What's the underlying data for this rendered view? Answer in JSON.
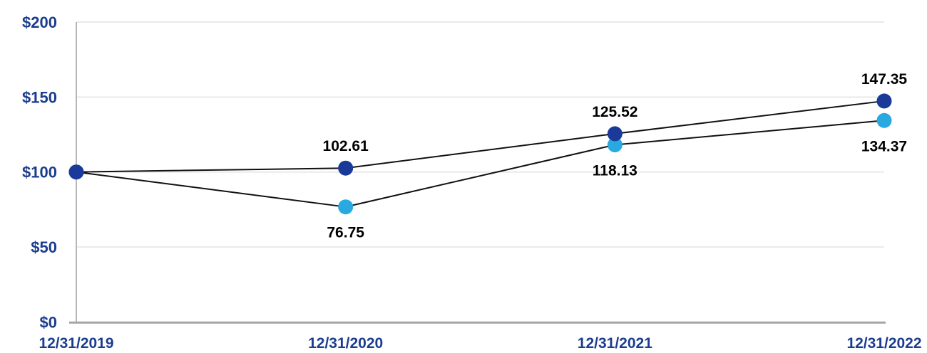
{
  "chart_data": {
    "type": "line",
    "title": "",
    "categories": [
      "12/31/2019",
      "12/31/2020",
      "12/31/2021",
      "12/31/2022"
    ],
    "series": [
      {
        "name": "navy-series",
        "color": "#1A3A99",
        "values": [
          100,
          102.61,
          125.52,
          147.35
        ],
        "point_labels": [
          "",
          "102.61",
          "125.52",
          "147.35"
        ],
        "label_position": "above"
      },
      {
        "name": "light-blue-series",
        "color": "#29A9E0",
        "values": [
          100,
          76.75,
          118.13,
          134.37
        ],
        "point_labels": [
          "",
          "76.75",
          "118.13",
          "134.37"
        ],
        "label_position": "below"
      }
    ],
    "y_axis": {
      "range": [
        0,
        200
      ],
      "ticks": [
        0,
        50,
        100,
        150,
        200
      ],
      "tick_labels": [
        "$0",
        "$50",
        "$100",
        "$150",
        "$200"
      ]
    },
    "x_axis": {
      "tick_labels": [
        "12/31/2019",
        "12/31/2020",
        "12/31/2021",
        "12/31/2022"
      ]
    },
    "grid": "horizontal",
    "legend": "none",
    "line_color": "#111111"
  },
  "styles": {
    "background": "#FFFFFF",
    "axis_text_color": "#1B3D8F",
    "point_label_color": "#000000",
    "grid_color": "#E3E3E3",
    "axis_line_color": "#A6A6A6"
  }
}
